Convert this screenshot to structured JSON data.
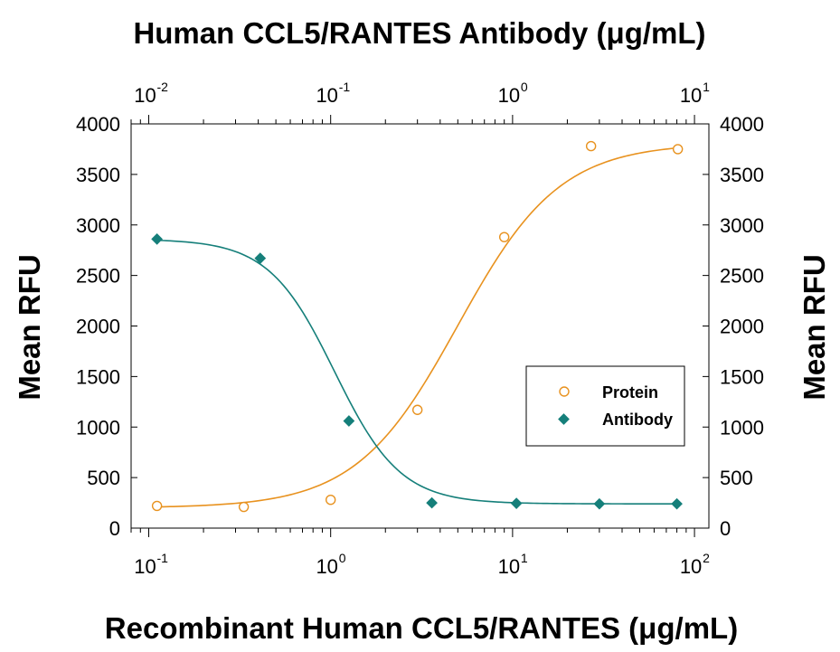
{
  "chart_data": {
    "type": "scatter",
    "title": "Human CCL5/RANTES Antibody (μg/mL)",
    "xlabel": "Recombinant Human CCL5/RANTES (μg/mL)",
    "ylabel": "Mean RFU",
    "ylabel_right": "Mean RFU",
    "x_scale": "log",
    "xlim": [
      0.08,
      120
    ],
    "ylim": [
      0,
      4000
    ],
    "y_ticks": [
      "0",
      "500",
      "1000",
      "1500",
      "2000",
      "2500",
      "3000",
      "3500",
      "4000"
    ],
    "x_bottom_ticks": [
      {
        "base": "10",
        "exp": "-1"
      },
      {
        "base": "10",
        "exp": "0"
      },
      {
        "base": "10",
        "exp": "1"
      },
      {
        "base": "10",
        "exp": "2"
      }
    ],
    "x_top_ticks": [
      {
        "base": "10",
        "exp": "-2"
      },
      {
        "base": "10",
        "exp": "-1"
      },
      {
        "base": "10",
        "exp": "0"
      },
      {
        "base": "10",
        "exp": "1"
      }
    ],
    "top_axis_ratio": 0.1,
    "grid": false,
    "legend_position": "middle-right",
    "series": [
      {
        "name": "Protein",
        "marker": "open-circle",
        "color": "#e8921f",
        "x": [
          0.111,
          0.333,
          1.0,
          3.0,
          9.0,
          27.0,
          81.0
        ],
        "y": [
          220,
          210,
          280,
          1170,
          2880,
          3780,
          3750
        ],
        "fit": {
          "bottom": 200,
          "top": 3810,
          "ec50": 5.0,
          "hill": 1.55,
          "increasing": true
        }
      },
      {
        "name": "Antibody",
        "marker": "filled-diamond",
        "color": "#157f7a",
        "x": [
          0.111,
          0.41,
          1.26,
          3.6,
          10.5,
          30.0,
          80.0
        ],
        "y": [
          2860,
          2670,
          1060,
          250,
          245,
          240,
          240
        ],
        "fit": {
          "bottom": 240,
          "top": 2860,
          "ec50": 1.05,
          "hill": 2.4,
          "increasing": false
        }
      }
    ]
  }
}
